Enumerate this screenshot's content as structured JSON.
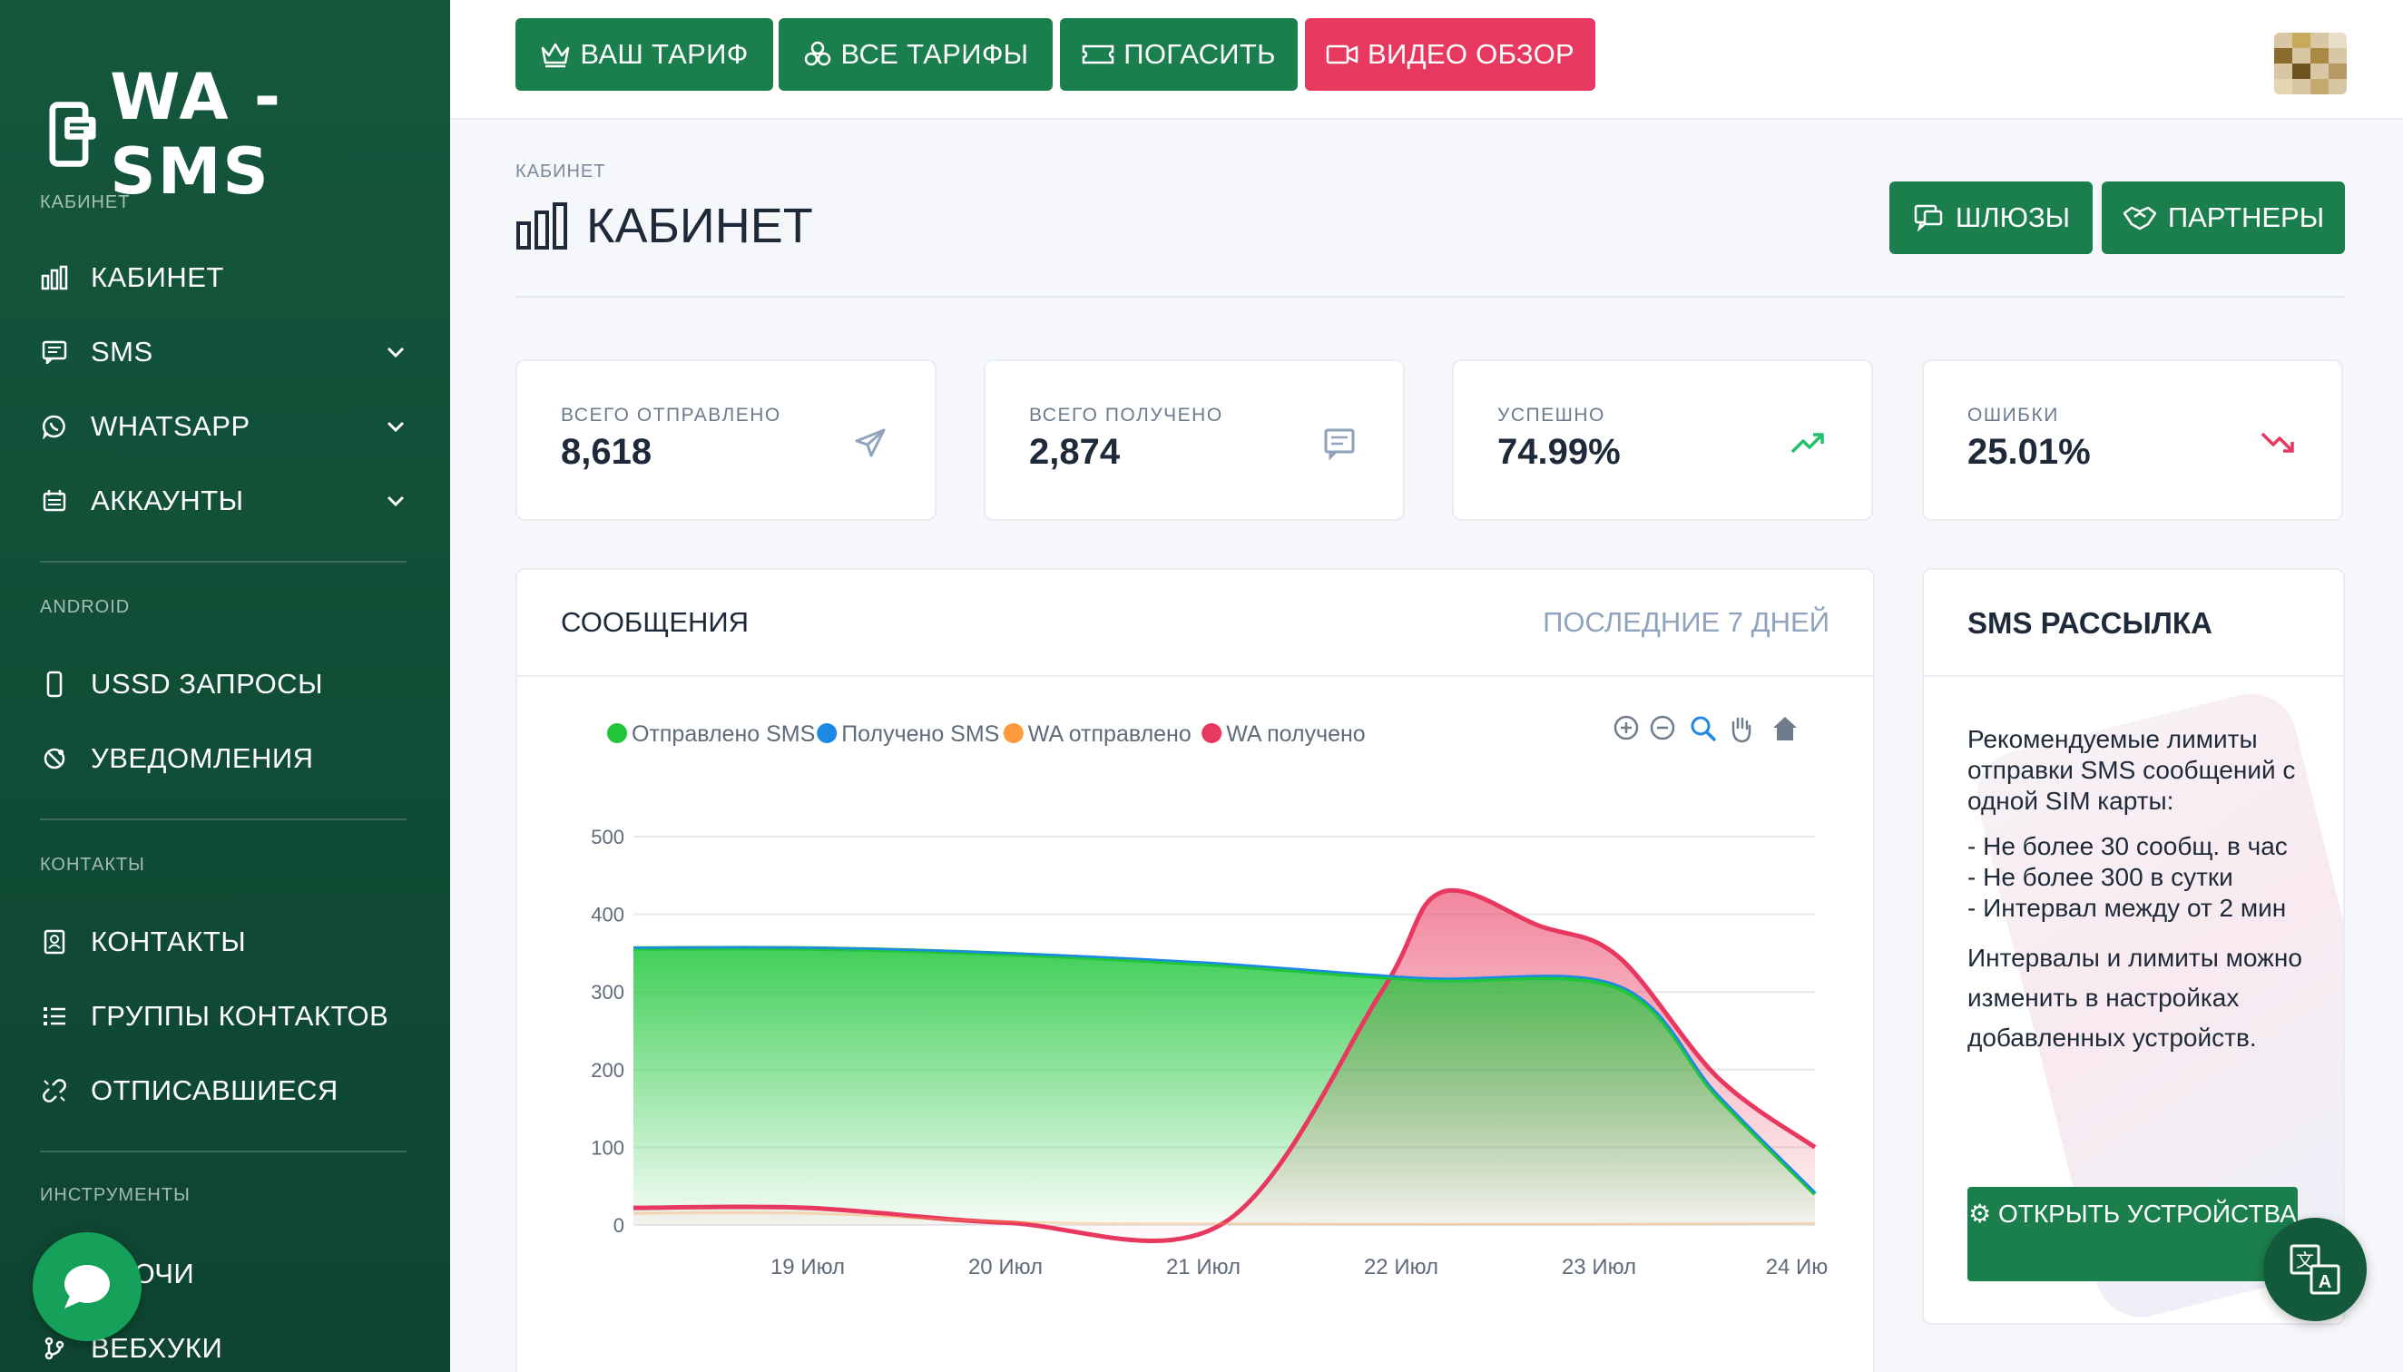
{
  "brand": {
    "name": "WA - SMS"
  },
  "topbar": {
    "buttons": [
      {
        "label": "ВАШ ТАРИФ",
        "icon": "crown-icon"
      },
      {
        "label": "ВСЕ ТАРИФЫ",
        "icon": "boxes-icon"
      },
      {
        "label": "ПОГАСИТЬ",
        "icon": "ticket-icon"
      },
      {
        "label": "ВИДЕО ОБЗОР",
        "icon": "video-icon"
      }
    ]
  },
  "sidebar": {
    "sections": [
      {
        "title": "КАБИНЕТ"
      },
      {
        "title": "ANDROID"
      },
      {
        "title": "КОНТАКТЫ"
      },
      {
        "title": "ИНСТРУМЕНТЫ"
      }
    ],
    "items": [
      {
        "label": "КАБИНЕТ",
        "icon": "chart-bars-icon"
      },
      {
        "label": "SMS",
        "icon": "message-icon",
        "expandable": true
      },
      {
        "label": "WHATSAPP",
        "icon": "whatsapp-icon",
        "expandable": true
      },
      {
        "label": "АККАУНТЫ",
        "icon": "accounts-icon",
        "expandable": true
      },
      {
        "label": "USSD ЗАПРОСЫ",
        "icon": "phone-icon"
      },
      {
        "label": "УВЕДОМЛЕНИЯ",
        "icon": "notification-icon"
      },
      {
        "label": "КОНТАКТЫ",
        "icon": "contact-icon"
      },
      {
        "label": "ГРУППЫ КОНТАКТОВ",
        "icon": "list-icon"
      },
      {
        "label": "ОТПИСАВШИЕСЯ",
        "icon": "unlink-icon"
      },
      {
        "label": "КЛЮЧИ",
        "icon": "key-icon"
      },
      {
        "label": "ВЕБХУКИ",
        "icon": "webhook-icon"
      }
    ]
  },
  "page": {
    "breadcrumb": "КАБИНЕТ",
    "title": "КАБИНЕТ",
    "header_buttons": [
      {
        "label": "ШЛЮЗЫ",
        "icon": "gateway-icon"
      },
      {
        "label": "ПАРТНЕРЫ",
        "icon": "handshake-icon"
      }
    ]
  },
  "stats": [
    {
      "label": "ВСЕГО ОТПРАВЛЕНО",
      "value": "8,618",
      "icon": "send-icon",
      "color": "#8fa3bd"
    },
    {
      "label": "ВСЕГО ПОЛУЧЕНО",
      "value": "2,874",
      "icon": "message-icon",
      "color": "#8fa3bd"
    },
    {
      "label": "УСПЕШНО",
      "value": "74.99%",
      "icon": "trend-up-icon",
      "color": "#23c16b"
    },
    {
      "label": "ОШИБКИ",
      "value": "25.01%",
      "icon": "trend-down-icon",
      "color": "#e9385f"
    }
  ],
  "messages_card": {
    "title": "СООБЩЕНИЯ",
    "range": "ПОСЛЕДНИЕ 7 ДНЕЙ"
  },
  "chart_data": {
    "type": "area",
    "title": "",
    "xlabel": "",
    "ylabel": "",
    "ylim": [
      0,
      500
    ],
    "yticks": [
      "500",
      "400",
      "300",
      "200",
      "100",
      "0"
    ],
    "x": [
      "19 Июл",
      "20 Июл",
      "21 Июл",
      "22 Июл",
      "23 Июл",
      "24 Ию"
    ],
    "legend_position": "top-left",
    "series": [
      {
        "name": "Отправлено SMS",
        "color": "#1fc63a",
        "points": [
          [
            0,
            356
          ],
          [
            0.9,
            350
          ],
          [
            2.0,
            336
          ],
          [
            3.1,
            316
          ],
          [
            4.1,
            305
          ],
          [
            4.6,
            165
          ],
          [
            5.1,
            40
          ]
        ]
      },
      {
        "name": "Получено SMS",
        "color": "#1e88e5",
        "points": [
          [
            0,
            357
          ],
          [
            0.9,
            351
          ],
          [
            2.0,
            338
          ],
          [
            3.1,
            318
          ],
          [
            4.1,
            308
          ],
          [
            4.6,
            168
          ],
          [
            5.1,
            42
          ]
        ]
      },
      {
        "name": "WA отправлено",
        "color": "#ff9a3c",
        "points": [
          [
            0,
            15
          ],
          [
            1.5,
            2
          ],
          [
            5.1,
            2
          ]
        ]
      },
      {
        "name": "WA получено",
        "color": "#e9385f",
        "points": [
          [
            0,
            22
          ],
          [
            1.0,
            3
          ],
          [
            2.1,
            2
          ],
          [
            2.9,
            300
          ],
          [
            3.2,
            428
          ],
          [
            3.7,
            385
          ],
          [
            4.1,
            345
          ],
          [
            4.6,
            190
          ],
          [
            5.1,
            100
          ]
        ]
      }
    ],
    "toolbar": [
      "zoom-in-icon",
      "zoom-out-icon",
      "zoom-select-icon",
      "pan-hand-icon",
      "home-reset-icon"
    ]
  },
  "sms_card": {
    "title": "SMS РАССЫЛКА",
    "lines": [
      "Рекомендуемые лимиты отправки SMS сообщений с одной SIM карты:",
      "- Не более 30 сообщ. в час",
      "- Не более 300 в сутки",
      "- Интервал между от 2 мин"
    ],
    "note": "Интервалы и лимиты можно изменить в настройках добавленных устройств.",
    "button": "⚙ ОТКРЫТЬ УСТРОЙСТВА"
  },
  "fabs": {
    "chat": "chat-bubble-icon",
    "translate": "translate-icon"
  }
}
